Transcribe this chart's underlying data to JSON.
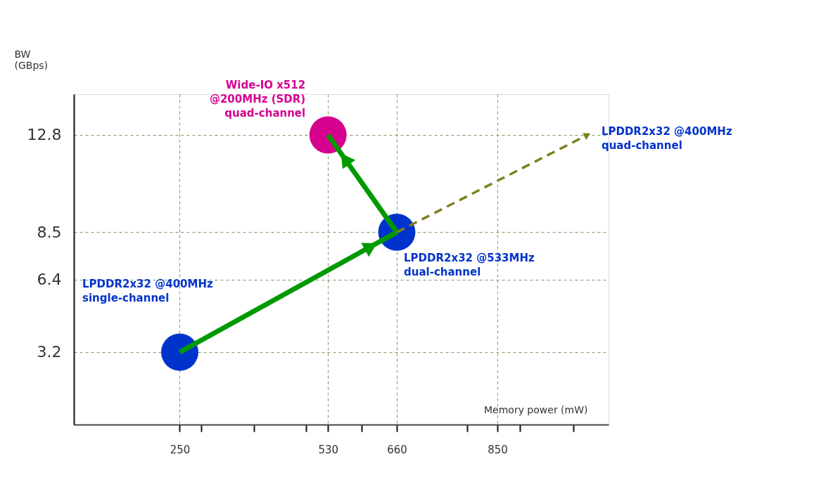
{
  "chart_data": {
    "type": "scatter",
    "xlabel": "Memory power (mW)",
    "ylabel": "BW (GBps)",
    "xlim": [
      50,
      1060
    ],
    "ylim": [
      0,
      14.6
    ],
    "xticks": [
      250,
      {
        "value": 291,
        "label": null
      },
      {
        "value": 390,
        "label": null
      },
      {
        "value": 488,
        "label": null
      },
      530,
      {
        "value": 593,
        "label": null
      },
      660,
      {
        "value": 793,
        "label": null
      },
      850,
      {
        "value": 892,
        "label": null
      },
      {
        "value": 994,
        "label": null
      }
    ],
    "yticks": [
      3.2,
      6.4,
      8.5,
      12.8
    ],
    "grid": true,
    "series": [
      {
        "type": "line",
        "color": "#009900",
        "x": [
          250,
          660
        ],
        "values": [
          3.2,
          8.5
        ],
        "line_style": "solid"
      },
      {
        "type": "line",
        "color": "#009900",
        "x": [
          660,
          530
        ],
        "values": [
          8.5,
          12.8
        ],
        "line_style": "solid"
      },
      {
        "type": "scatter",
        "color": "#0033cc",
        "x": [
          250,
          660
        ],
        "values": [
          3.2,
          8.5
        ],
        "marker": "circle"
      },
      {
        "type": "scatter",
        "color": "#d6008f",
        "x": [
          530
        ],
        "values": [
          12.8
        ],
        "marker": "circle"
      }
    ],
    "annotations": [
      {
        "text": "Wide-IO x512\n@200MHz (SDR)\nquad-channel",
        "x": 530,
        "y": 12.8
      },
      {
        "text": "LPDDR2x32 @400MHz\nquad-channel",
        "x": 1020,
        "y": 12.8
      },
      {
        "text": "LPDDR2x32 @533MHz\ndual-channel",
        "x": 660,
        "y": 8.5
      },
      "LPDDR2x32 @400MHz\nsingle-channel"
    ]
  }
}
